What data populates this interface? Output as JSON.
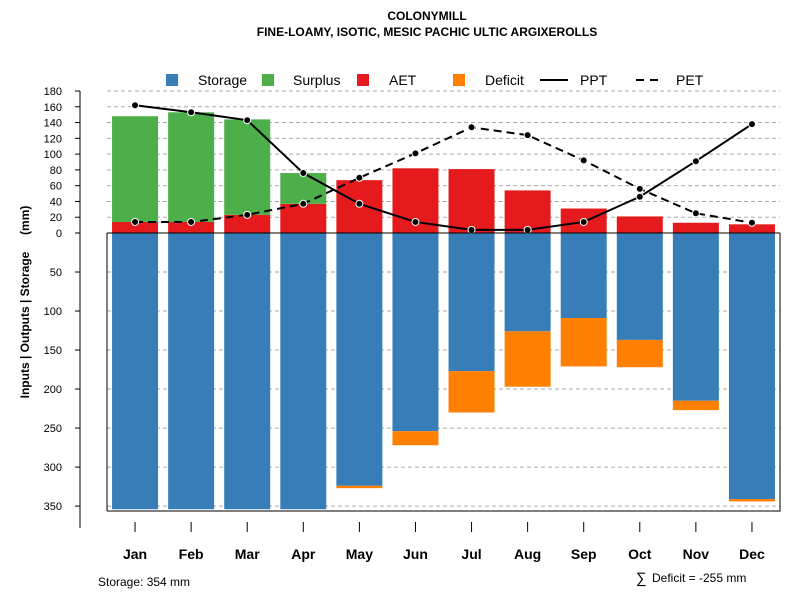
{
  "chart_data": {
    "type": "water-balance-bar-line",
    "title": "COLONYMILL",
    "subtitle": "FINE-LOAMY, ISOTIC, MESIC PACHIC ULTIC ARGIXEROLLS",
    "ylabel": "Inputs | Outputs | Storage     (mm)",
    "months": [
      "Jan",
      "Feb",
      "Mar",
      "Apr",
      "May",
      "Jun",
      "Jul",
      "Aug",
      "Sep",
      "Oct",
      "Nov",
      "Dec"
    ],
    "upper_ylim": [
      0,
      180
    ],
    "upper_ticks": [
      "0",
      "20",
      "40",
      "60",
      "80",
      "100",
      "120",
      "140",
      "160",
      "180"
    ],
    "lower_ylim": [
      0,
      355
    ],
    "lower_ticks": [
      "50",
      "100",
      "150",
      "200",
      "250",
      "300",
      "350"
    ],
    "legend": [
      {
        "label": "Storage",
        "kind": "box",
        "color": "#377EB8"
      },
      {
        "label": "Surplus",
        "kind": "box",
        "color": "#4DAF4A"
      },
      {
        "label": "AET",
        "kind": "box",
        "color": "#E41A1C"
      },
      {
        "label": "Deficit",
        "kind": "box",
        "color": "#FF7F00"
      },
      {
        "label": "PPT",
        "kind": "solid-line",
        "color": "#000000"
      },
      {
        "label": "PET",
        "kind": "dashed-line",
        "color": "#000000"
      }
    ],
    "colors": {
      "storage": "#377EB8",
      "surplus": "#4DAF4A",
      "aet": "#E41A1C",
      "deficit": "#FF7F00"
    },
    "series": {
      "aet": [
        14,
        14,
        23,
        37,
        67,
        82,
        81,
        54,
        31,
        21,
        13,
        11
      ],
      "surplus": [
        134,
        139,
        121,
        39,
        0,
        0,
        0,
        0,
        0,
        0,
        0,
        0
      ],
      "storage": [
        354,
        354,
        354,
        354,
        324,
        254,
        177,
        126,
        109,
        137,
        215,
        341
      ],
      "deficit": [
        0,
        0,
        0,
        0,
        3,
        18,
        53,
        71,
        62,
        35,
        12,
        3
      ],
      "ppt": [
        162,
        153,
        143,
        76,
        37,
        14,
        4,
        4,
        14,
        46,
        91,
        138
      ],
      "pet": [
        14,
        14,
        23,
        37,
        70,
        101,
        134,
        124,
        92,
        56,
        25,
        13
      ]
    },
    "footer_left": "Storage: 354 mm",
    "footer_right_symbol": "∑",
    "footer_right": "Deficit = -255 mm"
  }
}
